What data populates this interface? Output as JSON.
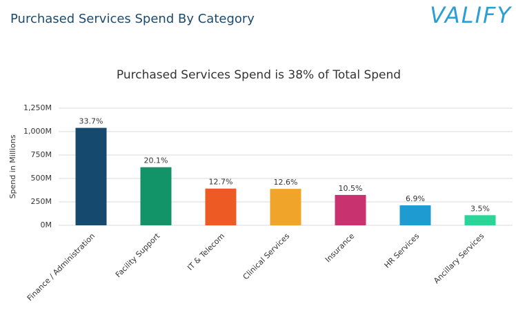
{
  "header": {
    "title": "Purchased Services Spend By Category",
    "logo": "VALIFY"
  },
  "chart_data": {
    "type": "bar",
    "title": "Purchased Services Spend is 38% of Total Spend",
    "y_label": "Spend in Millions",
    "categories": [
      "Finance / Administration",
      "Facility Support",
      "IT & Telecom",
      "Clinical Services",
      "Insurance",
      "HR Services",
      "Ancillary Services"
    ],
    "values": [
      1040,
      620,
      392,
      389,
      324,
      213,
      108
    ],
    "share_labels": [
      "33.7%",
      "20.1%",
      "12.7%",
      "12.6%",
      "10.5%",
      "6.9%",
      "3.5%"
    ],
    "colors": [
      "#154a6e",
      "#139468",
      "#ee5a24",
      "#f0a52a",
      "#c8336f",
      "#1e9bd1",
      "#2dd49a"
    ],
    "ylim": [
      0,
      1250
    ],
    "yticks": [
      {
        "value": 0,
        "label": "0M"
      },
      {
        "value": 250,
        "label": "250M"
      },
      {
        "value": 500,
        "label": "500M"
      },
      {
        "value": 750,
        "label": "750M"
      },
      {
        "value": 1000,
        "label": "1,000M"
      },
      {
        "value": 1250,
        "label": "1,250M"
      }
    ],
    "grid": true
  }
}
